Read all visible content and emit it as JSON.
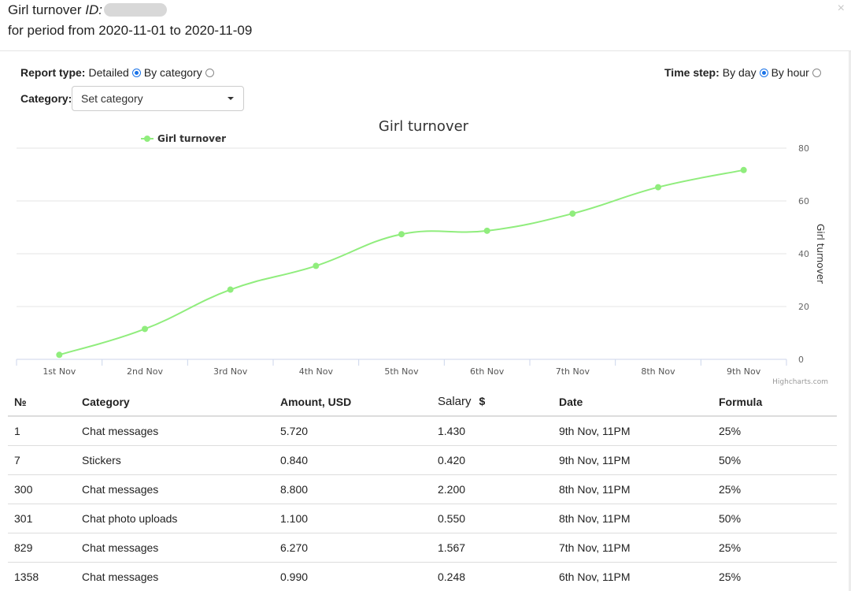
{
  "header": {
    "title": "Girl turnover",
    "id_label": "ID:",
    "period": "for period from 2020-11-01 to 2020-11-09",
    "close": "×"
  },
  "controls": {
    "report_type_label": "Report type:",
    "report_options": [
      {
        "label": "Detailed",
        "checked": true
      },
      {
        "label": "By category",
        "checked": false
      }
    ],
    "time_step_label": "Time step:",
    "time_options": [
      {
        "label": "By day",
        "checked": true
      },
      {
        "label": "By hour",
        "checked": false
      }
    ],
    "category_label": "Category:",
    "category_value": "Set category"
  },
  "chart_data": {
    "type": "line",
    "title": "Girl turnover",
    "categories": [
      "1st Nov",
      "2nd Nov",
      "3rd Nov",
      "4th Nov",
      "5th Nov",
      "6th Nov",
      "7th Nov",
      "8th Nov",
      "9th Nov"
    ],
    "series": [
      {
        "name": "Girl turnover",
        "color": "#90ed7d",
        "values": [
          1.7,
          11.5,
          26.4,
          35.4,
          47.4,
          48.7,
          55.2,
          65.2,
          71.7
        ]
      }
    ],
    "ylabel": "Girl turnover",
    "ylim": [
      0,
      80
    ],
    "yticks": [
      0,
      20,
      40,
      60,
      80
    ],
    "y_axis_side": "right",
    "legend_position": "top-left",
    "grid": true,
    "credits": "Highcharts.com"
  },
  "table": {
    "headers": {
      "num": "№",
      "category": "Category",
      "amount": "Amount, USD",
      "salary": "Salary",
      "salary_unit": "$",
      "date": "Date",
      "formula": "Formula"
    },
    "rows": [
      {
        "num": "1",
        "category": "Chat messages",
        "amount": "5.720",
        "salary": "1.430",
        "date": "9th Nov, 11PM",
        "formula": "25%"
      },
      {
        "num": "7",
        "category": "Stickers",
        "amount": "0.840",
        "salary": "0.420",
        "date": "9th Nov, 11PM",
        "formula": "50%"
      },
      {
        "num": "300",
        "category": "Chat messages",
        "amount": "8.800",
        "salary": "2.200",
        "date": "8th Nov, 11PM",
        "formula": "25%"
      },
      {
        "num": "301",
        "category": "Chat photo uploads",
        "amount": "1.100",
        "salary": "0.550",
        "date": "8th Nov, 11PM",
        "formula": "50%"
      },
      {
        "num": "829",
        "category": "Chat messages",
        "amount": "6.270",
        "salary": "1.567",
        "date": "7th Nov, 11PM",
        "formula": "25%"
      },
      {
        "num": "1358",
        "category": "Chat messages",
        "amount": "0.990",
        "salary": "0.248",
        "date": "6th Nov, 11PM",
        "formula": "25%"
      }
    ]
  }
}
